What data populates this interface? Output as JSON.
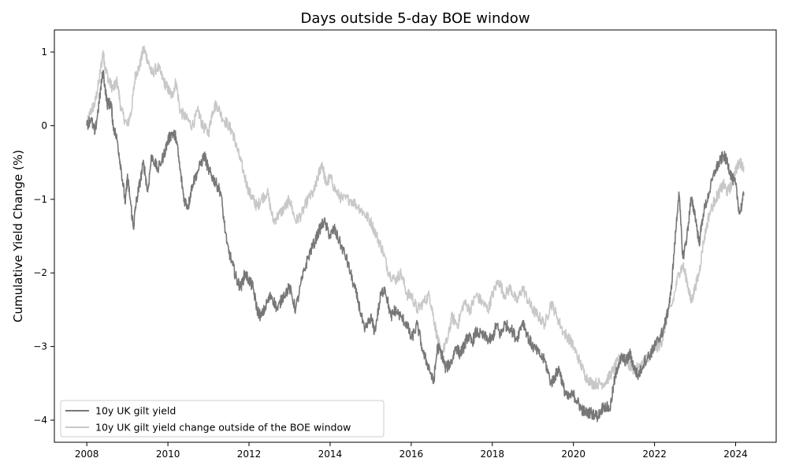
{
  "chart_data": {
    "type": "line",
    "title": "Days outside 5-day BOE window",
    "xlabel": "",
    "ylabel": "Cumulative Yield Change (%)",
    "xlim": [
      2007.2,
      2025.0
    ],
    "ylim": [
      -4.3,
      1.3
    ],
    "xticks": [
      2008,
      2010,
      2012,
      2014,
      2016,
      2018,
      2020,
      2022,
      2024
    ],
    "yticks": [
      -4,
      -3,
      -2,
      -1,
      0,
      1
    ],
    "legend_position": "lower-left",
    "series": [
      {
        "name": "10y UK gilt yield",
        "color": "#777777",
        "x": [
          2008.0,
          2008.1,
          2008.2,
          2008.3,
          2008.4,
          2008.5,
          2008.6,
          2008.65,
          2008.75,
          2008.85,
          2008.95,
          2009.0,
          2009.05,
          2009.15,
          2009.2,
          2009.3,
          2009.4,
          2009.5,
          2009.6,
          2009.75,
          2009.9,
          2010.0,
          2010.1,
          2010.2,
          2010.3,
          2010.4,
          2010.5,
          2010.6,
          2010.75,
          2010.9,
          2011.0,
          2011.1,
          2011.2,
          2011.3,
          2011.45,
          2011.6,
          2011.7,
          2011.8,
          2011.9,
          2012.0,
          2012.1,
          2012.2,
          2012.3,
          2012.45,
          2012.55,
          2012.7,
          2012.85,
          2013.0,
          2013.15,
          2013.3,
          2013.45,
          2013.6,
          2013.75,
          2013.85,
          2014.0,
          2014.1,
          2014.25,
          2014.4,
          2014.55,
          2014.7,
          2014.85,
          2015.0,
          2015.1,
          2015.25,
          2015.35,
          2015.5,
          2015.6,
          2015.75,
          2015.9,
          2016.0,
          2016.15,
          2016.3,
          2016.45,
          2016.55,
          2016.65,
          2016.75,
          2016.85,
          2017.0,
          2017.1,
          2017.2,
          2017.3,
          2017.4,
          2017.5,
          2017.6,
          2017.75,
          2017.9,
          2018.0,
          2018.1,
          2018.2,
          2018.3,
          2018.45,
          2018.6,
          2018.75,
          2018.9,
          2019.0,
          2019.15,
          2019.3,
          2019.45,
          2019.55,
          2019.65,
          2019.75,
          2019.85,
          2020.0,
          2020.1,
          2020.2,
          2020.3,
          2020.45,
          2020.6,
          2020.75,
          2020.9,
          2021.0,
          2021.1,
          2021.2,
          2021.3,
          2021.4,
          2021.5,
          2021.6,
          2021.75,
          2021.9,
          2022.0,
          2022.1,
          2022.2,
          2022.3,
          2022.4,
          2022.5,
          2022.6,
          2022.7,
          2022.8,
          2022.9,
          2023.0,
          2023.1,
          2023.2,
          2023.35,
          2023.5,
          2023.6,
          2023.7,
          2023.8,
          2023.9,
          2024.0,
          2024.1,
          2024.2
        ],
        "y": [
          0.0,
          0.1,
          -0.1,
          0.3,
          0.75,
          0.3,
          0.3,
          0.0,
          -0.2,
          -0.6,
          -1.05,
          -0.7,
          -0.9,
          -1.4,
          -1.1,
          -0.8,
          -0.5,
          -0.9,
          -0.4,
          -0.6,
          -0.4,
          -0.2,
          -0.1,
          -0.15,
          -0.6,
          -1.0,
          -1.1,
          -0.8,
          -0.6,
          -0.4,
          -0.6,
          -0.7,
          -0.8,
          -0.9,
          -1.6,
          -1.9,
          -2.1,
          -2.2,
          -2.0,
          -2.1,
          -2.2,
          -2.5,
          -2.6,
          -2.4,
          -2.3,
          -2.5,
          -2.3,
          -2.2,
          -2.5,
          -2.1,
          -1.8,
          -1.6,
          -1.4,
          -1.3,
          -1.5,
          -1.4,
          -1.6,
          -1.8,
          -2.1,
          -2.4,
          -2.8,
          -2.6,
          -2.8,
          -2.3,
          -2.2,
          -2.6,
          -2.5,
          -2.6,
          -2.7,
          -2.9,
          -2.7,
          -3.1,
          -3.3,
          -3.5,
          -3.0,
          -3.1,
          -3.3,
          -3.2,
          -3.0,
          -3.1,
          -3.0,
          -2.85,
          -2.95,
          -2.8,
          -2.85,
          -2.9,
          -2.9,
          -2.7,
          -2.85,
          -2.7,
          -2.75,
          -2.9,
          -2.65,
          -2.9,
          -3.0,
          -3.1,
          -3.2,
          -3.5,
          -3.4,
          -3.3,
          -3.55,
          -3.7,
          -3.65,
          -3.75,
          -3.85,
          -3.9,
          -3.9,
          -3.95,
          -3.8,
          -3.85,
          -3.5,
          -3.25,
          -3.15,
          -3.2,
          -3.1,
          -3.3,
          -3.4,
          -3.2,
          -3.1,
          -3.0,
          -2.9,
          -2.8,
          -2.6,
          -2.3,
          -1.6,
          -0.9,
          -1.8,
          -1.5,
          -1.0,
          -1.2,
          -1.6,
          -1.2,
          -0.9,
          -0.6,
          -0.5,
          -0.4,
          -0.5,
          -0.7,
          -0.8,
          -1.2,
          -0.95
        ]
      },
      {
        "name": "10y UK gilt yield change outside of the BOE window",
        "color": "#c8c8c8",
        "x": [
          2008.0,
          2008.1,
          2008.2,
          2008.3,
          2008.4,
          2008.45,
          2008.55,
          2008.65,
          2008.75,
          2008.85,
          2009.0,
          2009.1,
          2009.2,
          2009.3,
          2009.4,
          2009.5,
          2009.6,
          2009.75,
          2009.9,
          2010.0,
          2010.1,
          2010.2,
          2010.3,
          2010.45,
          2010.6,
          2010.75,
          2010.85,
          2011.0,
          2011.1,
          2011.2,
          2011.35,
          2011.5,
          2011.6,
          2011.7,
          2011.85,
          2012.0,
          2012.1,
          2012.2,
          2012.3,
          2012.45,
          2012.6,
          2012.75,
          2012.9,
          2013.0,
          2013.15,
          2013.3,
          2013.45,
          2013.6,
          2013.7,
          2013.8,
          2013.9,
          2014.0,
          2014.15,
          2014.3,
          2014.5,
          2014.7,
          2014.85,
          2015.0,
          2015.15,
          2015.3,
          2015.45,
          2015.6,
          2015.75,
          2015.9,
          2016.0,
          2016.15,
          2016.3,
          2016.45,
          2016.55,
          2016.65,
          2016.75,
          2016.9,
          2017.0,
          2017.15,
          2017.3,
          2017.45,
          2017.6,
          2017.75,
          2017.9,
          2018.0,
          2018.15,
          2018.3,
          2018.45,
          2018.6,
          2018.75,
          2018.9,
          2019.0,
          2019.15,
          2019.3,
          2019.45,
          2019.6,
          2019.75,
          2019.9,
          2020.0,
          2020.15,
          2020.3,
          2020.45,
          2020.6,
          2020.75,
          2020.9,
          2021.0,
          2021.1,
          2021.2,
          2021.3,
          2021.45,
          2021.6,
          2021.75,
          2021.9,
          2022.0,
          2022.1,
          2022.2,
          2022.3,
          2022.45,
          2022.6,
          2022.7,
          2022.8,
          2022.9,
          2023.0,
          2023.1,
          2023.2,
          2023.35,
          2023.5,
          2023.6,
          2023.7,
          2023.8,
          2023.9,
          2024.0,
          2024.1,
          2024.2
        ],
        "y": [
          0.0,
          0.2,
          0.3,
          0.6,
          1.0,
          0.8,
          0.6,
          0.5,
          0.6,
          0.2,
          0.0,
          0.2,
          0.7,
          0.8,
          1.05,
          0.9,
          0.7,
          0.8,
          0.6,
          0.5,
          0.4,
          0.6,
          0.2,
          0.1,
          0.0,
          0.2,
          0.0,
          -0.1,
          0.2,
          0.3,
          0.1,
          0.0,
          -0.1,
          -0.3,
          -0.6,
          -0.9,
          -1.0,
          -1.1,
          -1.0,
          -0.9,
          -1.3,
          -1.2,
          -1.1,
          -1.0,
          -1.3,
          -1.2,
          -1.0,
          -0.9,
          -0.7,
          -0.5,
          -0.8,
          -0.7,
          -0.9,
          -1.0,
          -1.0,
          -1.1,
          -1.2,
          -1.3,
          -1.5,
          -1.7,
          -2.0,
          -2.1,
          -2.0,
          -2.3,
          -2.3,
          -2.5,
          -2.4,
          -2.3,
          -2.6,
          -2.9,
          -3.1,
          -2.9,
          -2.6,
          -2.7,
          -2.4,
          -2.5,
          -2.3,
          -2.4,
          -2.5,
          -2.3,
          -2.1,
          -2.3,
          -2.2,
          -2.4,
          -2.2,
          -2.4,
          -2.5,
          -2.6,
          -2.7,
          -2.4,
          -2.6,
          -2.8,
          -2.9,
          -3.0,
          -3.2,
          -3.4,
          -3.5,
          -3.5,
          -3.5,
          -3.4,
          -3.3,
          -3.2,
          -3.1,
          -3.2,
          -3.3,
          -3.3,
          -3.2,
          -3.1,
          -3.0,
          -3.0,
          -2.9,
          -2.6,
          -2.4,
          -2.0,
          -1.9,
          -2.1,
          -2.4,
          -2.2,
          -2.0,
          -1.6,
          -1.2,
          -1.0,
          -0.9,
          -0.8,
          -0.9,
          -0.8,
          -0.6,
          -0.5,
          -0.55
        ]
      }
    ]
  }
}
